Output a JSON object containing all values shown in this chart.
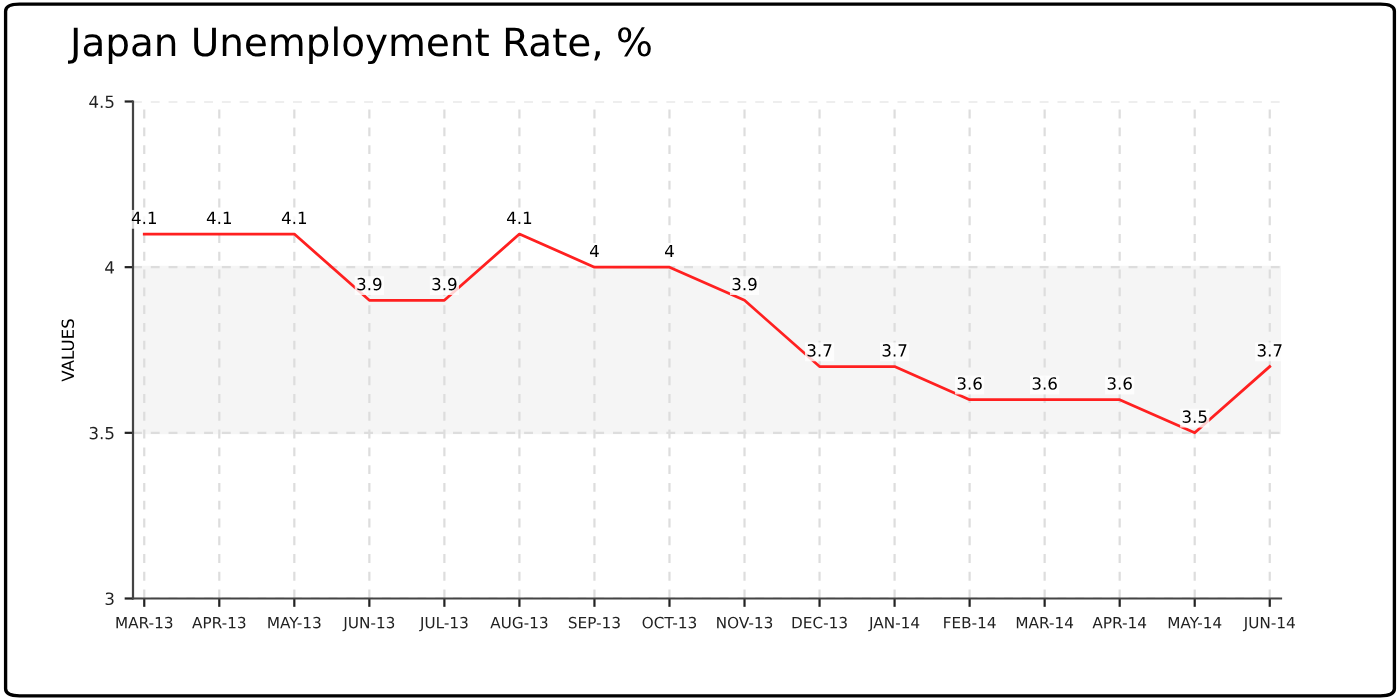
{
  "chart_data": {
    "type": "line",
    "title": "Japan Unemployment Rate, %",
    "ylabel": "VALUES",
    "categories": [
      "MAR-13",
      "APR-13",
      "MAY-13",
      "JUN-13",
      "JUL-13",
      "AUG-13",
      "SEP-13",
      "OCT-13",
      "NOV-13",
      "DEC-13",
      "JAN-14",
      "FEB-14",
      "MAR-14",
      "APR-14",
      "MAY-14",
      "JUN-14"
    ],
    "series": [
      {
        "color": "#ff2020",
        "values": [
          4.1,
          4.1,
          4.1,
          3.9,
          3.9,
          4.1,
          4,
          4,
          3.9,
          3.7,
          3.7,
          3.6,
          3.6,
          3.6,
          3.5,
          3.7
        ]
      }
    ],
    "ylim": [
      3,
      4.5
    ],
    "yticks": [
      3,
      3.5,
      4,
      4.5
    ],
    "bands": [
      {
        "axis": "y",
        "from": 3.5,
        "to": 4,
        "color": "#f5f5f5"
      }
    ],
    "grid": true,
    "data_labels": true,
    "marker": "none",
    "line_style": "solid"
  }
}
